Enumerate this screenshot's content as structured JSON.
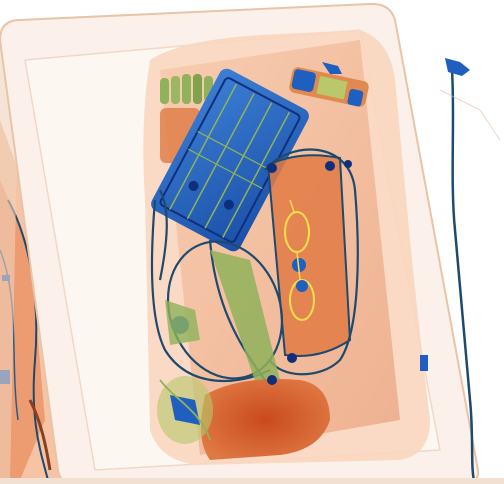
{
  "image": {
    "kind": "x-ray baggage scan",
    "palette": {
      "background": "#ffffff",
      "tray_edge": "#e8c4a8",
      "organic_light": "#f6c6a6",
      "organic_mid": "#ea8e5e",
      "organic_dark": "#c94a1e",
      "inorganic_green": "#8fb25a",
      "metal_blue": "#1f5fbf",
      "metal_dark": "#0f2f7a",
      "wire": "#1d4a6e"
    }
  }
}
